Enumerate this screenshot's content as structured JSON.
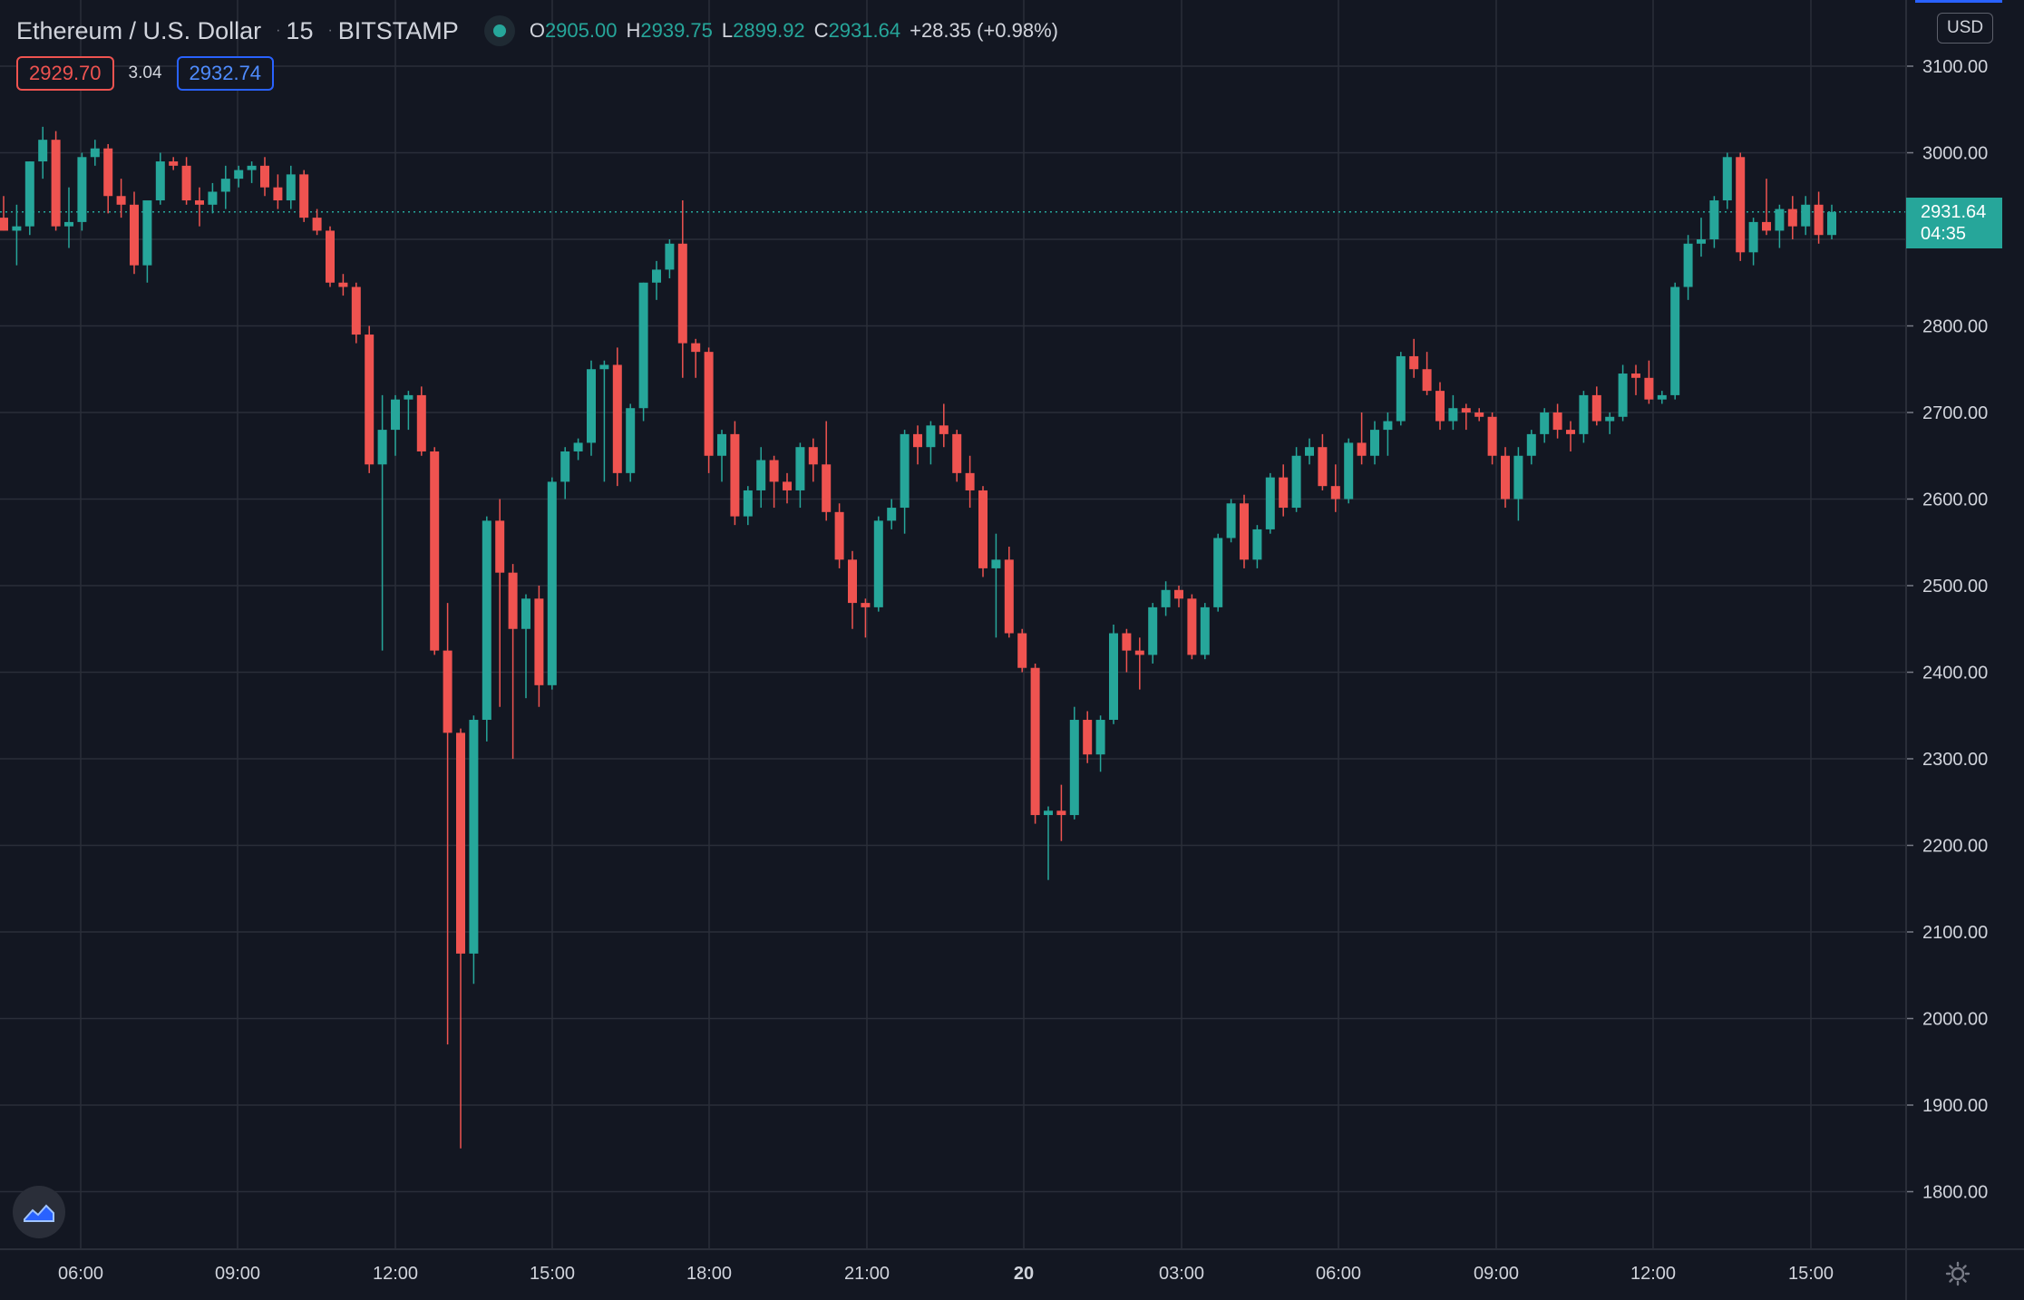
{
  "header": {
    "symbol": "Ethereum / U.S. Dollar",
    "interval": "15",
    "exchange": "BITSTAMP",
    "open_label": "O",
    "open": "2905.00",
    "high_label": "H",
    "high": "2939.75",
    "low_label": "L",
    "low": "2899.92",
    "close_label": "C",
    "close": "2931.64",
    "change": "+28.35 (+0.98%)"
  },
  "trade": {
    "sell": "2929.70",
    "spread": "3.04",
    "buy": "2932.74"
  },
  "currency": "USD",
  "last_price": {
    "price": "2931.64",
    "countdown": "04:35"
  },
  "colors": {
    "background": "#131722",
    "up": "#26a69a",
    "down": "#ef5350",
    "grid": "#2a2e39",
    "text": "#d1d4dc"
  },
  "icons": [
    "tradingview-logo-icon",
    "settings-gear-icon",
    "live-status-dot-icon"
  ],
  "chart_data": {
    "type": "candlestick",
    "title": "Ethereum / U.S. Dollar · 15 · BITSTAMP",
    "ylim": [
      1730,
      3130
    ],
    "yticks": [
      "3100.00",
      "3000.00",
      "2900.00",
      "2800.00",
      "2700.00",
      "2600.00",
      "2500.00",
      "2400.00",
      "2300.00",
      "2200.00",
      "2100.00",
      "2000.00",
      "1900.00",
      "1800.00"
    ],
    "xticks": [
      "06:00",
      "09:00",
      "12:00",
      "15:00",
      "18:00",
      "21:00",
      "20",
      "03:00",
      "06:00",
      "09:00",
      "12:00",
      "15:00"
    ],
    "grid": true,
    "last_price": 2931.64,
    "candles": [
      [
        2925,
        2950,
        2910,
        2910
      ],
      [
        2910,
        2940,
        2870,
        2915
      ],
      [
        2915,
        2990,
        2905,
        2990
      ],
      [
        2990,
        3030,
        2970,
        3015
      ],
      [
        3015,
        3025,
        2910,
        2915
      ],
      [
        2915,
        2960,
        2890,
        2920
      ],
      [
        2920,
        3000,
        2910,
        2995
      ],
      [
        2995,
        3015,
        2985,
        3005
      ],
      [
        3005,
        3010,
        2930,
        2950
      ],
      [
        2950,
        2970,
        2925,
        2940
      ],
      [
        2940,
        2955,
        2860,
        2870
      ],
      [
        2870,
        2940,
        2850,
        2945
      ],
      [
        2945,
        3000,
        2940,
        2990
      ],
      [
        2990,
        2995,
        2980,
        2985
      ],
      [
        2985,
        2995,
        2940,
        2945
      ],
      [
        2945,
        2960,
        2915,
        2940
      ],
      [
        2940,
        2965,
        2930,
        2955
      ],
      [
        2955,
        2985,
        2935,
        2970
      ],
      [
        2970,
        2985,
        2960,
        2980
      ],
      [
        2980,
        2990,
        2965,
        2985
      ],
      [
        2985,
        2995,
        2950,
        2960
      ],
      [
        2960,
        2975,
        2935,
        2945
      ],
      [
        2945,
        2985,
        2935,
        2975
      ],
      [
        2975,
        2980,
        2920,
        2925
      ],
      [
        2925,
        2935,
        2905,
        2910
      ],
      [
        2910,
        2915,
        2845,
        2850
      ],
      [
        2850,
        2860,
        2835,
        2845
      ],
      [
        2845,
        2850,
        2780,
        2790
      ],
      [
        2790,
        2800,
        2630,
        2640
      ],
      [
        2640,
        2720,
        2425,
        2680
      ],
      [
        2680,
        2720,
        2650,
        2715
      ],
      [
        2715,
        2725,
        2680,
        2720
      ],
      [
        2720,
        2730,
        2650,
        2655
      ],
      [
        2655,
        2660,
        2420,
        2425
      ],
      [
        2425,
        2480,
        1970,
        2330
      ],
      [
        2330,
        2335,
        1850,
        2075
      ],
      [
        2075,
        2350,
        2040,
        2345
      ],
      [
        2345,
        2580,
        2320,
        2575
      ],
      [
        2575,
        2600,
        2360,
        2515
      ],
      [
        2515,
        2525,
        2300,
        2450
      ],
      [
        2450,
        2490,
        2370,
        2485
      ],
      [
        2485,
        2500,
        2360,
        2385
      ],
      [
        2385,
        2625,
        2380,
        2620
      ],
      [
        2620,
        2660,
        2600,
        2655
      ],
      [
        2655,
        2670,
        2645,
        2665
      ],
      [
        2665,
        2760,
        2650,
        2750
      ],
      [
        2750,
        2760,
        2620,
        2755
      ],
      [
        2755,
        2775,
        2615,
        2630
      ],
      [
        2630,
        2710,
        2620,
        2705
      ],
      [
        2705,
        2850,
        2690,
        2850
      ],
      [
        2850,
        2875,
        2830,
        2865
      ],
      [
        2865,
        2900,
        2855,
        2895
      ],
      [
        2895,
        2945,
        2740,
        2780
      ],
      [
        2780,
        2785,
        2740,
        2770
      ],
      [
        2770,
        2775,
        2630,
        2650
      ],
      [
        2650,
        2680,
        2620,
        2675
      ],
      [
        2675,
        2690,
        2570,
        2580
      ],
      [
        2580,
        2615,
        2570,
        2610
      ],
      [
        2610,
        2660,
        2590,
        2645
      ],
      [
        2645,
        2650,
        2590,
        2620
      ],
      [
        2620,
        2630,
        2595,
        2610
      ],
      [
        2610,
        2665,
        2590,
        2660
      ],
      [
        2660,
        2670,
        2620,
        2640
      ],
      [
        2640,
        2690,
        2575,
        2585
      ],
      [
        2585,
        2595,
        2520,
        2530
      ],
      [
        2530,
        2540,
        2450,
        2480
      ],
      [
        2480,
        2485,
        2440,
        2475
      ],
      [
        2475,
        2580,
        2470,
        2575
      ],
      [
        2575,
        2600,
        2565,
        2590
      ],
      [
        2590,
        2680,
        2560,
        2675
      ],
      [
        2675,
        2685,
        2640,
        2660
      ],
      [
        2660,
        2690,
        2640,
        2685
      ],
      [
        2685,
        2710,
        2660,
        2675
      ],
      [
        2675,
        2680,
        2620,
        2630
      ],
      [
        2630,
        2650,
        2590,
        2610
      ],
      [
        2610,
        2615,
        2510,
        2520
      ],
      [
        2520,
        2560,
        2440,
        2530
      ],
      [
        2530,
        2545,
        2440,
        2445
      ],
      [
        2445,
        2450,
        2400,
        2405
      ],
      [
        2405,
        2410,
        2225,
        2235
      ],
      [
        2235,
        2245,
        2160,
        2240
      ],
      [
        2240,
        2270,
        2205,
        2235
      ],
      [
        2235,
        2360,
        2230,
        2345
      ],
      [
        2345,
        2355,
        2295,
        2305
      ],
      [
        2305,
        2350,
        2285,
        2345
      ],
      [
        2345,
        2455,
        2340,
        2445
      ],
      [
        2445,
        2450,
        2400,
        2425
      ],
      [
        2425,
        2440,
        2380,
        2420
      ],
      [
        2420,
        2480,
        2410,
        2475
      ],
      [
        2475,
        2505,
        2465,
        2495
      ],
      [
        2495,
        2500,
        2475,
        2485
      ],
      [
        2485,
        2490,
        2415,
        2420
      ],
      [
        2420,
        2480,
        2415,
        2475
      ],
      [
        2475,
        2560,
        2470,
        2555
      ],
      [
        2555,
        2600,
        2550,
        2595
      ],
      [
        2595,
        2605,
        2520,
        2530
      ],
      [
        2530,
        2570,
        2520,
        2565
      ],
      [
        2565,
        2630,
        2560,
        2625
      ],
      [
        2625,
        2640,
        2580,
        2590
      ],
      [
        2590,
        2660,
        2585,
        2650
      ],
      [
        2650,
        2670,
        2640,
        2660
      ],
      [
        2660,
        2675,
        2610,
        2615
      ],
      [
        2615,
        2640,
        2585,
        2600
      ],
      [
        2600,
        2670,
        2595,
        2665
      ],
      [
        2665,
        2700,
        2640,
        2650
      ],
      [
        2650,
        2690,
        2640,
        2680
      ],
      [
        2680,
        2700,
        2650,
        2690
      ],
      [
        2690,
        2770,
        2685,
        2765
      ],
      [
        2765,
        2785,
        2740,
        2750
      ],
      [
        2750,
        2770,
        2720,
        2725
      ],
      [
        2725,
        2735,
        2680,
        2690
      ],
      [
        2690,
        2720,
        2680,
        2705
      ],
      [
        2705,
        2710,
        2680,
        2700
      ],
      [
        2700,
        2705,
        2690,
        2695
      ],
      [
        2695,
        2700,
        2640,
        2650
      ],
      [
        2650,
        2660,
        2590,
        2600
      ],
      [
        2600,
        2660,
        2575,
        2650
      ],
      [
        2650,
        2680,
        2640,
        2675
      ],
      [
        2675,
        2705,
        2665,
        2700
      ],
      [
        2700,
        2710,
        2670,
        2680
      ],
      [
        2680,
        2690,
        2655,
        2675
      ],
      [
        2675,
        2725,
        2665,
        2720
      ],
      [
        2720,
        2730,
        2685,
        2690
      ],
      [
        2690,
        2700,
        2675,
        2695
      ],
      [
        2695,
        2755,
        2690,
        2745
      ],
      [
        2745,
        2755,
        2720,
        2740
      ],
      [
        2740,
        2760,
        2710,
        2715
      ],
      [
        2715,
        2725,
        2710,
        2720
      ],
      [
        2720,
        2850,
        2715,
        2845
      ],
      [
        2845,
        2905,
        2830,
        2895
      ],
      [
        2895,
        2925,
        2880,
        2900
      ],
      [
        2900,
        2950,
        2890,
        2945
      ],
      [
        2945,
        3000,
        2935,
        2995
      ],
      [
        2995,
        3000,
        2875,
        2885
      ],
      [
        2885,
        2925,
        2870,
        2920
      ],
      [
        2920,
        2970,
        2905,
        2910
      ],
      [
        2910,
        2940,
        2890,
        2935
      ],
      [
        2935,
        2950,
        2900,
        2915
      ],
      [
        2915,
        2950,
        2905,
        2940
      ],
      [
        2940,
        2955,
        2895,
        2905
      ],
      [
        2905,
        2940,
        2900,
        2931.64
      ]
    ]
  }
}
